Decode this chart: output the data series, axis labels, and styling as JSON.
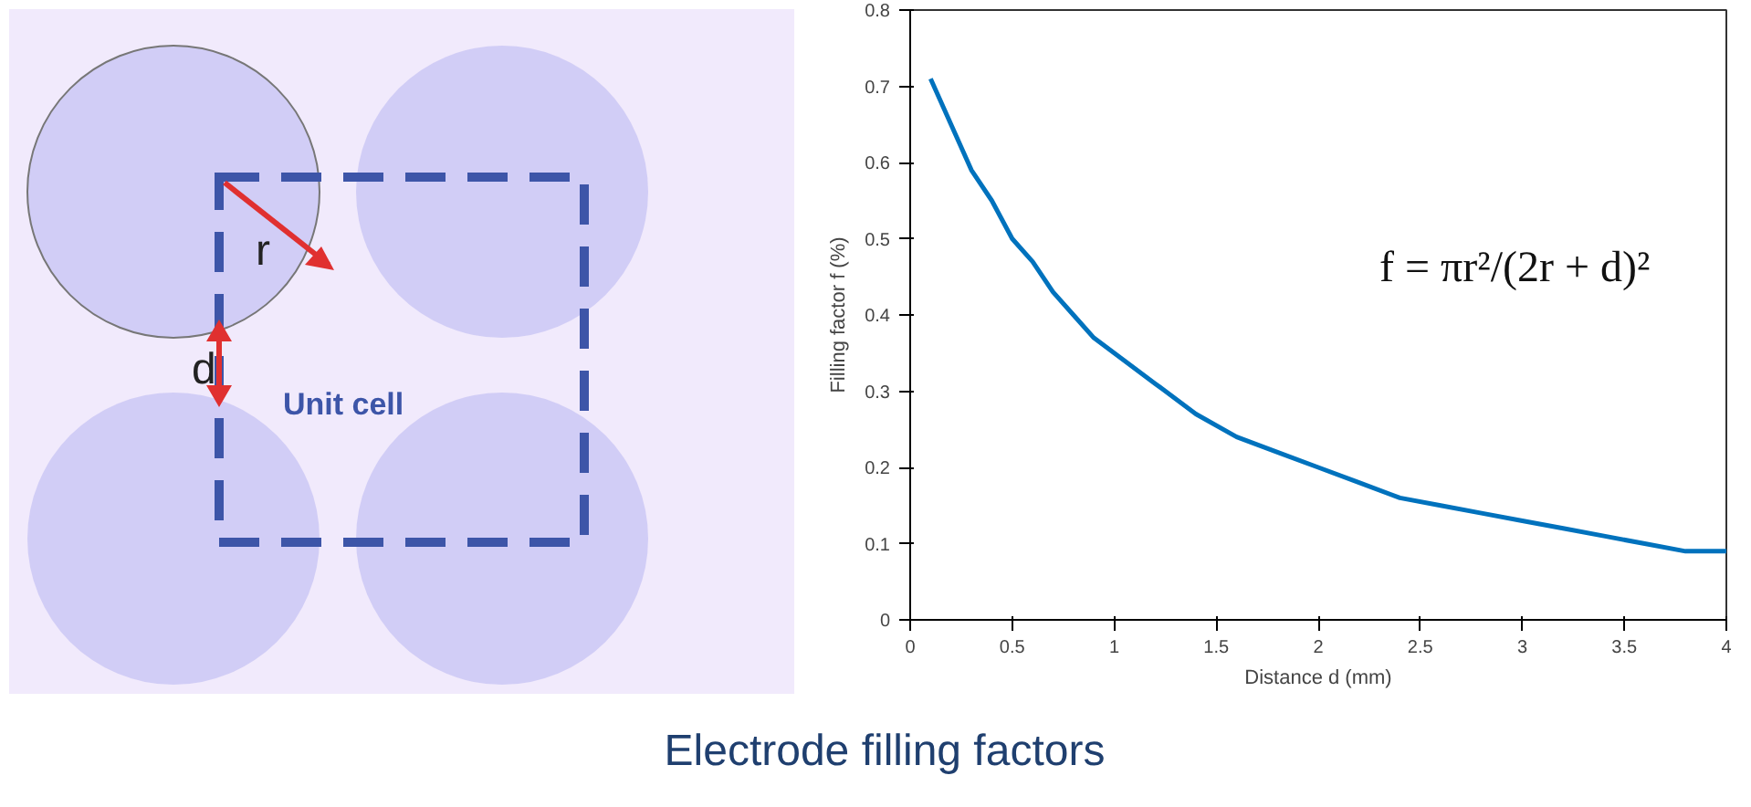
{
  "chart_data": [
    {
      "type": "other",
      "annotations": [
        "r",
        "d",
        "Unit cell"
      ]
    },
    {
      "type": "line",
      "xlabel": "Distance d (mm)",
      "ylabel": "Filling factor f (%)",
      "xlim": [
        0,
        4
      ],
      "ylim": [
        0,
        0.8
      ],
      "xticks": [
        0,
        0.5,
        1,
        1.5,
        2,
        2.5,
        3,
        3.5,
        4
      ],
      "yticks": [
        0,
        0.1,
        0.2,
        0.3,
        0.4,
        0.5,
        0.6,
        0.7,
        0.8
      ],
      "grid": false,
      "x": [
        0.1,
        0.2,
        0.3,
        0.4,
        0.5,
        0.6,
        0.7,
        0.8,
        0.9,
        1.0,
        1.2,
        1.4,
        1.6,
        1.8,
        2.0,
        2.2,
        2.4,
        2.6,
        2.8,
        3.0,
        3.2,
        3.4,
        3.6,
        3.8,
        4.0
      ],
      "series": [
        {
          "color": "#0072bd",
          "values": [
            0.71,
            0.65,
            0.59,
            0.55,
            0.5,
            0.47,
            0.43,
            0.4,
            0.37,
            0.35,
            0.31,
            0.27,
            0.24,
            0.22,
            0.2,
            0.18,
            0.16,
            0.15,
            0.14,
            0.13,
            0.12,
            0.11,
            0.1,
            0.09,
            0.09
          ]
        }
      ],
      "annotations": [
        "f = πr²/(2r + d)²",
        "Electrode filling factors"
      ]
    }
  ]
}
